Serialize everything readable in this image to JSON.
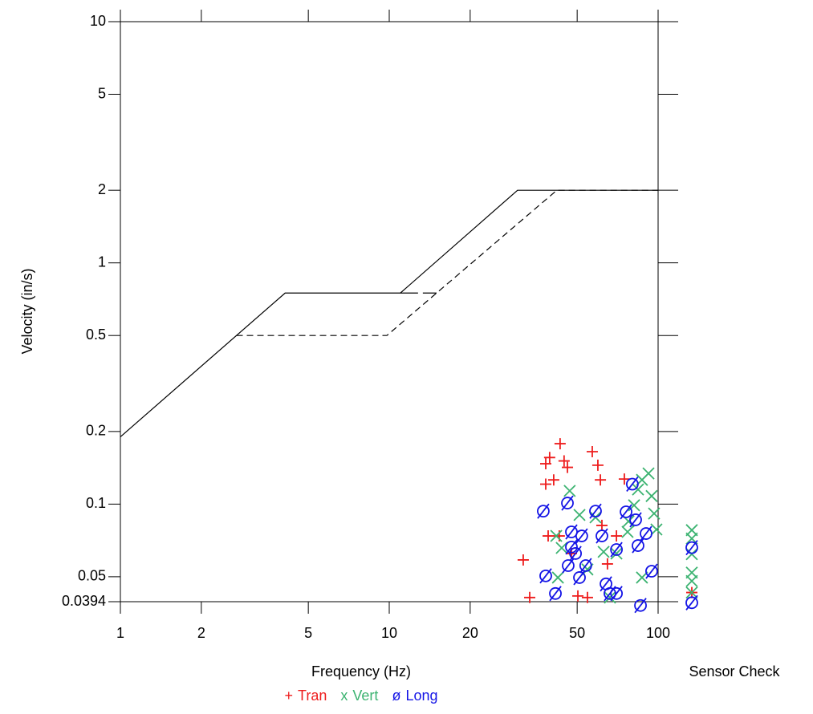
{
  "chart_data": {
    "type": "scatter",
    "xlabel": "Frequency (Hz)",
    "ylabel": "Velocity (in/s)",
    "sensor_label": "Sensor Check",
    "xlog": true,
    "ylog": true,
    "xlim": [
      1,
      100
    ],
    "ylim": [
      0.0394,
      10
    ],
    "xticks": [
      1,
      2,
      5,
      10,
      20,
      50,
      100
    ],
    "yticks": [
      0.0394,
      0.05,
      0.1,
      0.2,
      0.5,
      1,
      2,
      5,
      10
    ],
    "lines": [
      {
        "style": "solid",
        "x": [
          1,
          4.1,
          11,
          30,
          100
        ],
        "values": [
          0.19,
          0.75,
          0.75,
          2,
          2
        ]
      },
      {
        "style": "dashed",
        "x": [
          2.7,
          9.8,
          42,
          100
        ],
        "values": [
          0.5,
          0.5,
          2,
          2
        ]
      },
      {
        "style": "longdash",
        "x": [
          11,
          15
        ],
        "values": [
          0.75,
          0.75
        ]
      }
    ],
    "series": [
      {
        "name": "Tran",
        "marker": "+",
        "color": "#ee1c1c",
        "x": [
          31.5,
          33.3,
          38.2,
          39.5,
          40.9,
          43.2,
          44.7,
          46.0,
          39.0,
          42.9,
          47.6,
          50.3,
          54.6,
          56.9,
          59.7,
          61.0,
          61.8,
          70.0,
          64.8,
          74.9,
          38.2
        ],
        "values": [
          0.0587,
          0.041,
          0.147,
          0.156,
          0.126,
          0.178,
          0.151,
          0.142,
          0.0738,
          0.0738,
          0.0624,
          0.0416,
          0.041,
          0.165,
          0.145,
          0.126,
          0.0816,
          0.0738,
          0.0565,
          0.127,
          0.121
        ],
        "sensor_values": [
          0.043
        ]
      },
      {
        "name": "Vert",
        "marker": "x",
        "color": "#3cb371",
        "x": [
          41.8,
          42.4,
          43.8,
          46.9,
          51.0,
          54.6,
          58.5,
          62.7,
          66.2,
          70.0,
          77.0,
          81.4,
          84.2,
          87.1,
          92.1,
          94.6,
          96.6,
          98.6,
          87.1,
          77.6
        ],
        "values": [
          0.0738,
          0.0496,
          0.0658,
          0.1135,
          0.0902,
          0.0536,
          0.0881,
          0.0634,
          0.041,
          0.0624,
          0.0767,
          0.0989,
          0.115,
          0.126,
          0.134,
          0.108,
          0.0914,
          0.0785,
          0.0496,
          0.0848
        ],
        "sensor_values": [
          0.078,
          0.072,
          0.062,
          0.052,
          0.048,
          0.043
        ]
      },
      {
        "name": "Long",
        "marker": "ø",
        "color": "#1414e6",
        "x": [
          37.4,
          38.2,
          41.5,
          46.0,
          47.6,
          47.6,
          49.3,
          51.0,
          52.0,
          53.8,
          58.5,
          61.8,
          64.0,
          66.2,
          70.0,
          70.0,
          76.0,
          80.2,
          82.5,
          84.2,
          90.2,
          94.6,
          86.0,
          46.3
        ],
        "values": [
          0.0935,
          0.0504,
          0.0426,
          0.101,
          0.0767,
          0.0664,
          0.0624,
          0.0496,
          0.0738,
          0.0556,
          0.0935,
          0.0738,
          0.0467,
          0.0426,
          0.0426,
          0.0648,
          0.0929,
          0.121,
          0.0861,
          0.0673,
          0.0755,
          0.0527,
          0.038,
          0.0556
        ],
        "sensor_values": [
          0.066,
          0.039
        ]
      }
    ]
  }
}
